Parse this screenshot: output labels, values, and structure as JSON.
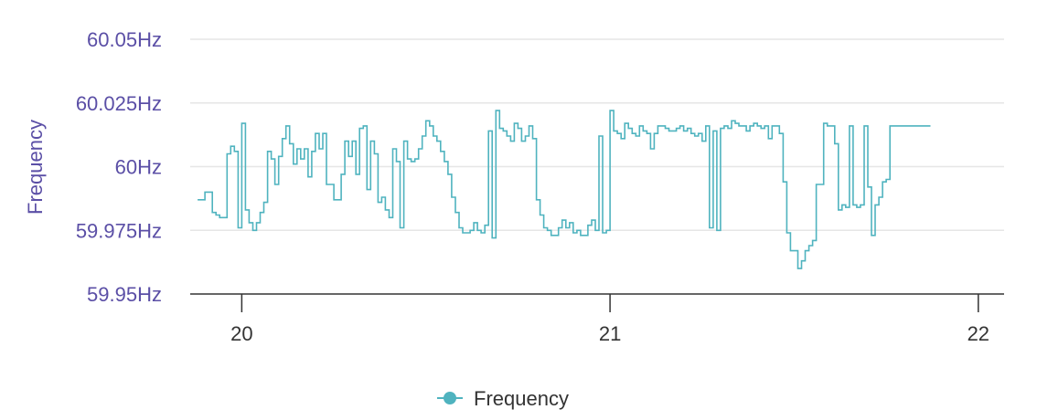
{
  "chart_data": {
    "type": "line",
    "title": "",
    "xlabel": "",
    "ylabel": "Frequency",
    "xlim": [
      19.86,
      22.07
    ],
    "ylim": [
      59.95,
      60.05
    ],
    "x_ticks": [
      20,
      21,
      22
    ],
    "x_tick_labels": [
      "20",
      "21",
      "22"
    ],
    "y_ticks": [
      59.95,
      59.975,
      60,
      60.025,
      60.05
    ],
    "y_tick_labels": [
      "59.95Hz",
      "59.975Hz",
      "60Hz",
      "60.025Hz",
      "60.05Hz"
    ],
    "grid": true,
    "legend_position": "bottom-center",
    "series": [
      {
        "name": "Frequency",
        "color": "#4fb3bf",
        "step": true,
        "x": [
          19.88,
          19.9,
          19.92,
          19.93,
          19.94,
          19.95,
          19.96,
          19.97,
          19.98,
          19.99,
          20.0,
          20.01,
          20.02,
          20.03,
          20.04,
          20.05,
          20.06,
          20.07,
          20.08,
          20.09,
          20.1,
          20.11,
          20.12,
          20.13,
          20.14,
          20.15,
          20.16,
          20.17,
          20.18,
          20.19,
          20.2,
          20.21,
          20.22,
          20.23,
          20.24,
          20.25,
          20.26,
          20.27,
          20.28,
          20.29,
          20.3,
          20.31,
          20.32,
          20.33,
          20.34,
          20.35,
          20.36,
          20.37,
          20.38,
          20.39,
          20.4,
          20.41,
          20.42,
          20.43,
          20.44,
          20.45,
          20.46,
          20.47,
          20.48,
          20.49,
          20.5,
          20.51,
          20.52,
          20.53,
          20.54,
          20.55,
          20.56,
          20.57,
          20.58,
          20.59,
          20.6,
          20.61,
          20.62,
          20.63,
          20.64,
          20.65,
          20.66,
          20.67,
          20.68,
          20.69,
          20.7,
          20.71,
          20.72,
          20.73,
          20.74,
          20.75,
          20.76,
          20.77,
          20.78,
          20.79,
          20.8,
          20.81,
          20.82,
          20.83,
          20.84,
          20.85,
          20.86,
          20.87,
          20.88,
          20.89,
          20.9,
          20.91,
          20.92,
          20.93,
          20.94,
          20.95,
          20.96,
          20.97,
          20.98,
          20.99,
          21.0,
          21.01,
          21.02,
          21.03,
          21.04,
          21.05,
          21.06,
          21.07,
          21.08,
          21.09,
          21.1,
          21.11,
          21.12,
          21.13,
          21.14,
          21.15,
          21.16,
          21.17,
          21.18,
          21.19,
          21.2,
          21.21,
          21.22,
          21.23,
          21.24,
          21.25,
          21.26,
          21.27,
          21.28,
          21.29,
          21.3,
          21.31,
          21.32,
          21.33,
          21.34,
          21.35,
          21.36,
          21.37,
          21.38,
          21.39,
          21.4,
          21.41,
          21.42,
          21.43,
          21.44,
          21.45,
          21.46,
          21.47,
          21.48,
          21.49,
          21.5,
          21.51,
          21.52,
          21.53,
          21.54,
          21.55,
          21.56,
          21.57,
          21.58,
          21.59,
          21.6,
          21.61,
          21.62,
          21.63,
          21.64,
          21.65,
          21.66,
          21.67,
          21.68,
          21.69,
          21.7,
          21.71,
          21.72,
          21.73,
          21.74,
          21.75,
          21.76,
          21.77,
          21.78,
          21.79,
          21.8,
          21.81,
          21.82,
          21.83,
          21.84,
          21.85,
          21.86,
          21.87
        ],
        "values": [
          59.987,
          59.99,
          59.982,
          59.981,
          59.98,
          59.98,
          60.005,
          60.008,
          60.006,
          59.976,
          60.017,
          59.983,
          59.978,
          59.975,
          59.978,
          59.982,
          59.986,
          60.006,
          60.003,
          59.993,
          60.004,
          60.011,
          60.016,
          60.009,
          60.001,
          60.007,
          60.003,
          60.007,
          59.996,
          60.006,
          60.013,
          60.007,
          60.013,
          59.993,
          59.993,
          59.987,
          59.987,
          59.997,
          60.01,
          60.004,
          60.01,
          59.997,
          60.015,
          60.016,
          59.991,
          60.01,
          60.005,
          59.986,
          59.988,
          59.983,
          59.98,
          60.007,
          60.002,
          59.976,
          60.01,
          60.003,
          60.002,
          60.003,
          60.007,
          60.012,
          60.018,
          60.016,
          60.012,
          60.01,
          60.006,
          60.002,
          59.997,
          59.988,
          59.982,
          59.976,
          59.974,
          59.974,
          59.975,
          59.978,
          59.975,
          59.974,
          59.977,
          60.014,
          59.972,
          60.022,
          60.015,
          60.014,
          60.012,
          60.01,
          60.017,
          60.015,
          60.01,
          60.012,
          60.016,
          60.011,
          59.987,
          59.981,
          59.976,
          59.975,
          59.973,
          59.973,
          59.976,
          59.979,
          59.976,
          59.978,
          59.974,
          59.975,
          59.973,
          59.973,
          59.977,
          59.979,
          59.975,
          60.012,
          59.974,
          59.975,
          60.022,
          60.014,
          60.013,
          60.011,
          60.017,
          60.015,
          60.013,
          60.012,
          60.016,
          60.014,
          60.013,
          60.007,
          60.013,
          60.016,
          60.016,
          60.015,
          60.014,
          60.014,
          60.015,
          60.016,
          60.014,
          60.015,
          60.013,
          60.012,
          60.013,
          60.01,
          60.016,
          59.976,
          60.014,
          59.975,
          60.015,
          60.016,
          60.015,
          60.018,
          60.017,
          60.016,
          60.016,
          60.014,
          60.016,
          60.017,
          60.016,
          60.015,
          60.016,
          60.011,
          60.016,
          60.016,
          60.013,
          59.994,
          59.974,
          59.967,
          59.967,
          59.96,
          59.963,
          59.967,
          59.969,
          59.971,
          59.993,
          59.993,
          60.017,
          60.016,
          60.016,
          60.009,
          59.983,
          59.985,
          59.984,
          60.016,
          59.985,
          59.984,
          59.985,
          60.016,
          59.992,
          59.973,
          59.985,
          59.988,
          59.994,
          59.995,
          60.016,
          60.016,
          60.016,
          60.016,
          60.016,
          60.016,
          60.016,
          60.016,
          60.016,
          60.016,
          60.016,
          60.016
        ]
      }
    ]
  }
}
